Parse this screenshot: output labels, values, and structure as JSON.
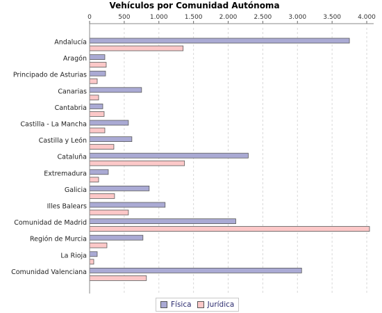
{
  "chart_data": {
    "type": "bar",
    "orientation": "horizontal",
    "title": "Vehículos por Comunidad Autónoma",
    "xlabel": "",
    "ylabel": "",
    "xlim": [
      0,
      4100
    ],
    "x_ticks": [
      0,
      500,
      1000,
      1500,
      2000,
      2500,
      3000,
      3500,
      4000
    ],
    "x_tick_labels": [
      "0",
      "500",
      "1.000",
      "1.500",
      "2.000",
      "2.500",
      "3.000",
      "3.500",
      "4.000"
    ],
    "grid": true,
    "legend_position": "bottom",
    "categories": [
      "Andalucía",
      "Aragón",
      "Principado de Asturias",
      "Canarias",
      "Cantabria",
      "Castilla - La Mancha",
      "Castilla y León",
      "Cataluña",
      "Extremadura",
      "Galicia",
      "Illes Balears",
      "Comunidad de Madrid",
      "Región de Murcia",
      "La Rioja",
      "Comunidad Valenciana"
    ],
    "series": [
      {
        "name": "Física",
        "color": "#aaaad4",
        "values": [
          3750,
          220,
          230,
          750,
          190,
          560,
          610,
          2290,
          270,
          860,
          1090,
          2110,
          770,
          110,
          3060
        ]
      },
      {
        "name": "Jurídica",
        "color": "#fcc8c8",
        "values": [
          1350,
          240,
          110,
          130,
          210,
          220,
          350,
          1370,
          130,
          360,
          560,
          4040,
          250,
          60,
          820
        ]
      }
    ]
  }
}
